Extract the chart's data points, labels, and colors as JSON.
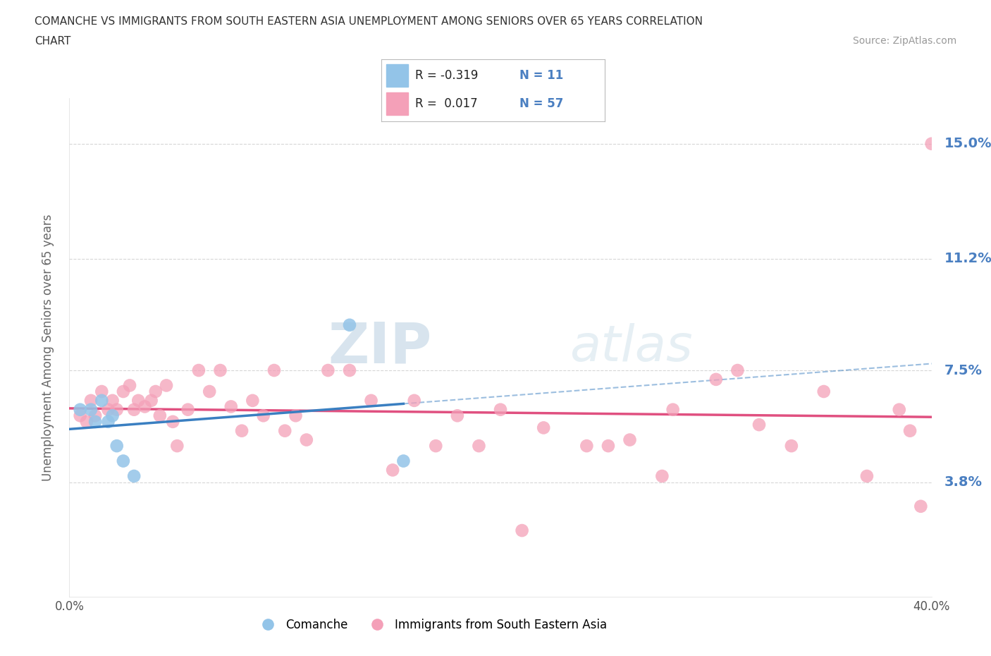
{
  "title_line1": "COMANCHE VS IMMIGRANTS FROM SOUTH EASTERN ASIA UNEMPLOYMENT AMONG SENIORS OVER 65 YEARS CORRELATION",
  "title_line2": "CHART",
  "source_text": "Source: ZipAtlas.com",
  "ylabel": "Unemployment Among Seniors over 65 years",
  "xlim": [
    0.0,
    0.4
  ],
  "ylim": [
    0.0,
    0.165
  ],
  "yticks": [
    0.038,
    0.075,
    0.112,
    0.15
  ],
  "ytick_labels": [
    "3.8%",
    "7.5%",
    "11.2%",
    "15.0%"
  ],
  "xticks": [
    0.0,
    0.05,
    0.1,
    0.15,
    0.2,
    0.25,
    0.3,
    0.35,
    0.4
  ],
  "xtick_labels": [
    "0.0%",
    "",
    "",
    "",
    "",
    "",
    "",
    "",
    "40.0%"
  ],
  "comanche_x": [
    0.005,
    0.01,
    0.012,
    0.015,
    0.018,
    0.02,
    0.022,
    0.025,
    0.03,
    0.13,
    0.155
  ],
  "comanche_y": [
    0.062,
    0.062,
    0.058,
    0.065,
    0.058,
    0.06,
    0.05,
    0.045,
    0.04,
    0.09,
    0.045
  ],
  "immigrants_x": [
    0.005,
    0.008,
    0.01,
    0.012,
    0.015,
    0.018,
    0.02,
    0.022,
    0.025,
    0.028,
    0.03,
    0.032,
    0.035,
    0.038,
    0.04,
    0.042,
    0.045,
    0.048,
    0.05,
    0.055,
    0.06,
    0.065,
    0.07,
    0.075,
    0.08,
    0.085,
    0.09,
    0.095,
    0.1,
    0.105,
    0.11,
    0.12,
    0.13,
    0.14,
    0.15,
    0.16,
    0.17,
    0.18,
    0.19,
    0.2,
    0.21,
    0.22,
    0.24,
    0.25,
    0.26,
    0.275,
    0.28,
    0.3,
    0.31,
    0.32,
    0.335,
    0.35,
    0.37,
    0.385,
    0.39,
    0.395,
    0.4
  ],
  "immigrants_y": [
    0.06,
    0.058,
    0.065,
    0.06,
    0.068,
    0.062,
    0.065,
    0.062,
    0.068,
    0.07,
    0.062,
    0.065,
    0.063,
    0.065,
    0.068,
    0.06,
    0.07,
    0.058,
    0.05,
    0.062,
    0.075,
    0.068,
    0.075,
    0.063,
    0.055,
    0.065,
    0.06,
    0.075,
    0.055,
    0.06,
    0.052,
    0.075,
    0.075,
    0.065,
    0.042,
    0.065,
    0.05,
    0.06,
    0.05,
    0.062,
    0.022,
    0.056,
    0.05,
    0.05,
    0.052,
    0.04,
    0.062,
    0.072,
    0.075,
    0.057,
    0.05,
    0.068,
    0.04,
    0.062,
    0.055,
    0.03,
    0.15
  ],
  "r_comanche": -0.319,
  "n_comanche": 11,
  "r_immigrants": 0.017,
  "n_immigrants": 57,
  "color_comanche": "#93c4e8",
  "color_immigrants": "#f4a0b8",
  "line_color_comanche": "#3a7fc1",
  "line_color_immigrants": "#e05080",
  "watermark_color": "#ccdded",
  "title_color": "#333333",
  "axis_label_color": "#666666",
  "tick_label_color_right": "#4a7fc1",
  "source_color": "#999999",
  "background_color": "#ffffff",
  "grid_color": "#cccccc",
  "legend_box_color": "#4a7fc1"
}
